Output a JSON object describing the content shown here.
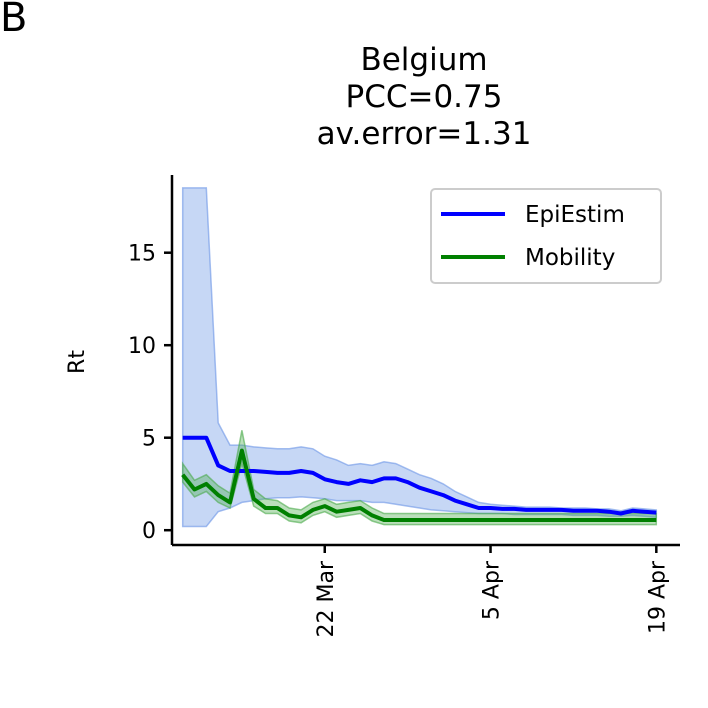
{
  "panel_label": "B",
  "chart_data": {
    "type": "line",
    "title_lines": [
      "Belgium",
      "PCC=0.75",
      "av.error=1.31"
    ],
    "xlabel": "",
    "ylabel": "Rt",
    "x_day_start": 0,
    "x_day_end": 40,
    "xlim": [
      -0.9,
      42.0
    ],
    "ylim": [
      -0.8,
      19.2
    ],
    "xticks": [
      {
        "day": 12,
        "label": "22 Mar"
      },
      {
        "day": 26,
        "label": "5 Apr"
      },
      {
        "day": 40,
        "label": "19 Apr"
      }
    ],
    "yticks": [
      0,
      5,
      10,
      15
    ],
    "series": [
      {
        "name": "EpiEstim",
        "color": "#0000ff",
        "band_color": "#6a95e6",
        "values": [
          5.0,
          5.0,
          5.0,
          3.5,
          3.2,
          3.2,
          3.2,
          3.15,
          3.1,
          3.1,
          3.2,
          3.1,
          2.75,
          2.6,
          2.5,
          2.7,
          2.6,
          2.8,
          2.8,
          2.6,
          2.3,
          2.1,
          1.9,
          1.6,
          1.4,
          1.2,
          1.2,
          1.15,
          1.15,
          1.1,
          1.1,
          1.1,
          1.1,
          1.05,
          1.05,
          1.05,
          1.0,
          0.9,
          1.05,
          1.0,
          0.95
        ],
        "lower": [
          0.2,
          0.2,
          0.2,
          1.0,
          1.2,
          1.5,
          1.6,
          1.7,
          1.75,
          1.75,
          1.8,
          1.75,
          1.7,
          1.6,
          1.6,
          1.6,
          1.5,
          1.5,
          1.4,
          1.3,
          1.2,
          1.1,
          1.05,
          1.0,
          0.95,
          0.9,
          0.9,
          0.9,
          0.85,
          0.85,
          0.85,
          0.85,
          0.85,
          0.8,
          0.8,
          0.8,
          0.75,
          0.75,
          0.8,
          0.75,
          0.7
        ],
        "upper": [
          18.5,
          18.5,
          18.5,
          5.8,
          4.6,
          4.6,
          4.5,
          4.45,
          4.4,
          4.4,
          4.5,
          4.4,
          4.0,
          3.8,
          3.5,
          3.6,
          3.5,
          3.7,
          3.6,
          3.3,
          3.0,
          2.8,
          2.5,
          2.1,
          1.8,
          1.5,
          1.4,
          1.35,
          1.3,
          1.25,
          1.25,
          1.25,
          1.2,
          1.2,
          1.2,
          1.15,
          1.15,
          1.05,
          1.2,
          1.15,
          1.1
        ]
      },
      {
        "name": "Mobility",
        "color": "#008000",
        "band_color": "#4aaa4a",
        "values": [
          3.0,
          2.2,
          2.5,
          1.9,
          1.5,
          4.3,
          1.7,
          1.2,
          1.2,
          0.8,
          0.7,
          1.1,
          1.3,
          1.0,
          1.1,
          1.2,
          0.8,
          0.55,
          0.55,
          0.55,
          0.55,
          0.55,
          0.55,
          0.55,
          0.55,
          0.55,
          0.55,
          0.55,
          0.55,
          0.55,
          0.55,
          0.55,
          0.55,
          0.55,
          0.55,
          0.55,
          0.55,
          0.55,
          0.55,
          0.55,
          0.55
        ],
        "lower": [
          2.6,
          1.8,
          2.1,
          1.5,
          1.2,
          3.6,
          1.3,
          0.9,
          0.9,
          0.5,
          0.4,
          0.8,
          1.0,
          0.7,
          0.8,
          0.9,
          0.5,
          0.3,
          0.3,
          0.3,
          0.3,
          0.3,
          0.3,
          0.3,
          0.3,
          0.3,
          0.3,
          0.3,
          0.3,
          0.3,
          0.3,
          0.3,
          0.3,
          0.3,
          0.3,
          0.3,
          0.3,
          0.3,
          0.3,
          0.3,
          0.3
        ],
        "upper": [
          3.6,
          2.7,
          3.0,
          2.4,
          2.0,
          5.4,
          2.2,
          1.7,
          1.6,
          1.2,
          1.1,
          1.5,
          1.7,
          1.4,
          1.5,
          1.6,
          1.2,
          0.9,
          0.9,
          0.9,
          0.9,
          0.9,
          0.9,
          0.9,
          0.9,
          0.9,
          0.9,
          0.9,
          0.9,
          0.9,
          0.9,
          0.9,
          0.9,
          0.9,
          0.9,
          0.9,
          0.9,
          0.9,
          0.9,
          0.9,
          0.9
        ]
      }
    ],
    "legend": {
      "position": "upper right",
      "entries": [
        "EpiEstim",
        "Mobility"
      ]
    }
  }
}
